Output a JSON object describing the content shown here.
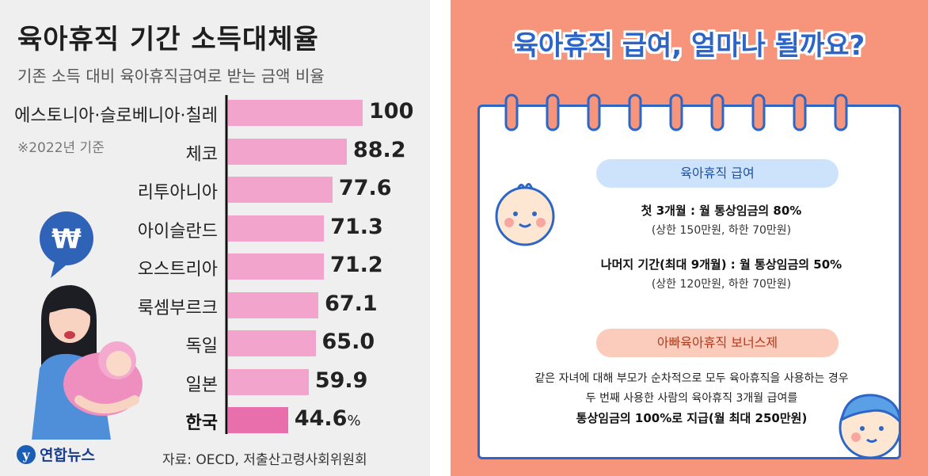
{
  "left": {
    "title": "육아휴직 기간 소득대체율",
    "subtitle": "기존 소득 대비 육아휴직급여로 받는 금액 비율",
    "note": "※2022년 기준",
    "source": "자료: OECD, 저출산고령사회위원회",
    "logo_text": "연합뉴스",
    "logo_mark": "y",
    "badge_symbol": "₩",
    "pct_suffix": "%"
  },
  "chart_data": {
    "type": "bar",
    "orientation": "horizontal",
    "title": "육아휴직 기간 소득대체율",
    "subtitle": "기존 소득 대비 육아휴직급여로 받는 금액 비율",
    "categories": [
      "에스토니아·슬로베니아·칠레",
      "체코",
      "리투아니아",
      "아이슬란드",
      "오스트리아",
      "룩셈부르크",
      "독일",
      "일본",
      "한국"
    ],
    "values": [
      100,
      88.2,
      77.6,
      71.3,
      71.2,
      67.1,
      65.0,
      59.9,
      44.6
    ],
    "value_labels": [
      "100",
      "88.2",
      "77.6",
      "71.3",
      "71.2",
      "67.1",
      "65.0",
      "59.9",
      "44.6"
    ],
    "highlight_index": 8,
    "xlim": [
      0,
      100
    ],
    "colors": {
      "bar": "#f2a4cc",
      "highlight": "#e86eac",
      "axis": "#111111"
    }
  },
  "right": {
    "title": "육아휴직 급여, 얼마나 될까요?",
    "section1": {
      "pill": "육아휴직 급여",
      "line1": "첫 3개월 : 월 통상임금의 80%",
      "line1_sub": "(상한 150만원, 하한 70만원)",
      "line2": "나머지 기간(최대 9개월) : 월 통상임금의 50%",
      "line2_sub": "(상한 120만원, 하한 70만원)"
    },
    "section2": {
      "pill": "아빠육아휴직 보너스제",
      "line1": "같은 자녀에 대해 부모가 순차적으로 모두 육아휴직을 사용하는 경우",
      "line2": "두 번째 사용한 사람의 육아휴직 3개월 급여를",
      "line3": "통상임금의 100%로 지급(월 최대 250만원)"
    },
    "colors": {
      "background": "#f6957c",
      "accent_blue": "#2d66c4",
      "pill_blue": "#cde3fb",
      "pill_red": "#fbcbbb"
    }
  }
}
